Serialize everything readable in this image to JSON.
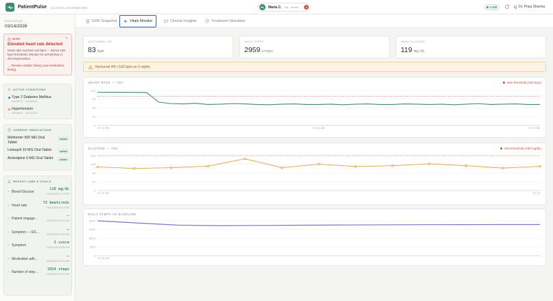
{
  "header": {
    "brand": "PatientPulse",
    "subtitle": "CLINICAL DASHBOARD",
    "patient": {
      "initials": "MC",
      "name": "Maria C.",
      "meta": "58y · female",
      "alert_count": "1"
    },
    "live_label": "LIVE",
    "user_name": "Dr. Priya Sharma"
  },
  "sidebar": {
    "discharge_label": "DISCHARGE",
    "discharge_date": "03/14/2026",
    "alert": {
      "tag": "HIGH",
      "title": "Elevated heart rate detected",
      "body": "Heart rate reached 115 bpm — above 100 bpm threshold. Monitor for arrhythmia or decompensation.",
      "action": "→ Review cardiac history and medication timing"
    },
    "conditions": {
      "heading": "ACTIVE CONDITIONS",
      "items": [
        {
          "name": "Type 2 Diabetes Mellitus",
          "code": "SNOMED · 44054006",
          "color": "#3f8b6e"
        },
        {
          "name": "Hypertension",
          "code": "SNOMED · 38341003",
          "color": "#d9a030"
        }
      ]
    },
    "medications": {
      "heading": "CURRENT MEDICATIONS",
      "items": [
        {
          "name": "Metformin 500 MG Oral Tablet",
          "status": "active"
        },
        {
          "name": "Lisinopril 10 MG Oral Tablet",
          "status": "active"
        },
        {
          "name": "Amlodipine 5 MG Oral Tablet",
          "status": "active"
        }
      ]
    },
    "labs": {
      "heading": "RECENT LABS & VITALS",
      "items": [
        {
          "name": "Blood Glucose",
          "value": "118 mg/dL",
          "time": "03/20/2026 07:19 PM"
        },
        {
          "name": "Heart rate",
          "value": "72 beats/min",
          "time": "03/20/2026 08:14 PM"
        },
        {
          "name": "Patient engagem…",
          "value": "—",
          "time": "03/20/2026 09:11 AM"
        },
        {
          "name": "Symptom — ES…",
          "value": "—",
          "time": "03/20/2026 09:09 AM"
        },
        {
          "name": "Symptom",
          "value": "2 score",
          "time": "03/20/2026 09:08 AM"
        },
        {
          "name": "Medication adh…",
          "value": "—",
          "time": "03/20/2026 09:06 AM"
        },
        {
          "name": "Number of step…",
          "value": "2924 steps",
          "time": "03/20/2026 09:10 PM"
        }
      ]
    }
  },
  "tabs": [
    {
      "label": "EHR Snapshot",
      "icon": "document-icon",
      "active": false
    },
    {
      "label": "Vitals Monitor",
      "icon": "pulse-icon",
      "active": true
    },
    {
      "label": "Clinical Insights",
      "icon": "chat-icon",
      "active": false
    },
    {
      "label": "Treatment Simulator",
      "icon": "heart-icon",
      "active": false
    }
  ],
  "stats": [
    {
      "label": "NOCTURNAL HR",
      "value": "83",
      "unit": "bpm"
    },
    {
      "label": "DAILY STEPS",
      "value": "2959",
      "unit": "steps"
    },
    {
      "label": "MEAN GLUCOSE",
      "value": "119",
      "unit": "mg/dL"
    }
  ],
  "warning": "Nocturnal HR >100 bpm on 3 nights",
  "colors": {
    "accent": "#3f8b6e",
    "glucose_line": "#e0a040",
    "steps_line": "#8070c8",
    "alert": "#c0473f"
  },
  "chart_data": [
    {
      "type": "line",
      "title": "HEART RATE — 72H",
      "legend": "Alert threshold (100 bpm)",
      "threshold": 100,
      "ylim": [
        0,
        120
      ],
      "yticks": [
        "120",
        "90",
        "60",
        "30",
        "0"
      ],
      "xticks": [
        "07:19 PM",
        "07:19 AM",
        "07:19 PM"
      ],
      "x": [
        0,
        4,
        8,
        10,
        12,
        14,
        16,
        18,
        20,
        22,
        24,
        26,
        28,
        30,
        32,
        34,
        36,
        38,
        40,
        42,
        44,
        46,
        48,
        50,
        52,
        54,
        56,
        58,
        60,
        62,
        64,
        66,
        68,
        70,
        72
      ],
      "values": [
        114,
        114,
        113,
        80,
        75,
        74,
        76,
        72,
        73,
        75,
        74,
        72,
        71,
        73,
        74,
        72,
        72,
        73,
        71,
        73,
        74,
        72,
        72,
        74,
        73,
        72,
        73,
        71,
        73,
        75,
        72,
        73,
        74,
        72,
        72
      ]
    },
    {
      "type": "line",
      "title": "GLUCOSE — 72H",
      "legend": "Alert threshold (180 mg/dL)",
      "threshold": 180,
      "ylim": [
        0,
        180
      ],
      "yticks": [
        "180",
        "135",
        "90",
        "45",
        "0"
      ],
      "xticks": [
        "07:19 PM",
        "07:19"
      ],
      "points": [
        122,
        114,
        118,
        126,
        164,
        118,
        136,
        124,
        128,
        138,
        128,
        116,
        125
      ],
      "marker_every": 1
    },
    {
      "type": "line",
      "title": "DAILY STEPS VS BASELINE",
      "ylim": [
        0,
        5000
      ],
      "yticks": [
        "5000",
        "4000",
        "2000",
        "1000",
        "0"
      ],
      "xticks": [
        "07:19 AM"
      ],
      "values": [
        5000,
        4680,
        4380,
        4300,
        4330,
        4360,
        4400,
        4420,
        4440,
        4450,
        4460,
        4460
      ]
    }
  ]
}
